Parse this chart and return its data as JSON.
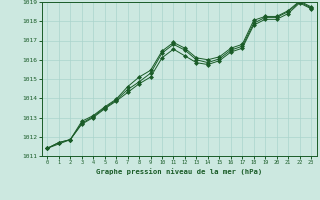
{
  "xlabel": "Graphe pression niveau de la mer (hPa)",
  "xlim": [
    -0.5,
    23.5
  ],
  "ylim": [
    1011,
    1019
  ],
  "yticks": [
    1011,
    1012,
    1013,
    1014,
    1015,
    1016,
    1017,
    1018,
    1019
  ],
  "xticks": [
    0,
    1,
    2,
    3,
    4,
    5,
    6,
    7,
    8,
    9,
    10,
    11,
    12,
    13,
    14,
    15,
    16,
    17,
    18,
    19,
    20,
    21,
    22,
    23
  ],
  "bg_color": "#cce8e0",
  "grid_color": "#aad4cc",
  "line_color": "#1a5c28",
  "line1_x": [
    0,
    1,
    2,
    3,
    4,
    5,
    6,
    7,
    8,
    9,
    10,
    11,
    12,
    13,
    14,
    15,
    16,
    17,
    18,
    19,
    20,
    21,
    22,
    23
  ],
  "line1_y": [
    1011.4,
    1011.7,
    1011.85,
    1012.65,
    1013.0,
    1013.45,
    1013.85,
    1014.3,
    1014.75,
    1015.1,
    1016.1,
    1016.55,
    1016.2,
    1015.85,
    1015.75,
    1015.95,
    1016.4,
    1016.6,
    1017.8,
    1018.1,
    1018.1,
    1018.4,
    1018.95,
    1018.65
  ],
  "line2_x": [
    0,
    1,
    2,
    3,
    4,
    5,
    6,
    7,
    8,
    9,
    10,
    11,
    12,
    13,
    14,
    15,
    16,
    17,
    18,
    19,
    20,
    21,
    22,
    23
  ],
  "line2_y": [
    1011.4,
    1011.7,
    1011.85,
    1012.8,
    1013.1,
    1013.55,
    1013.95,
    1014.6,
    1015.1,
    1015.45,
    1016.45,
    1016.9,
    1016.6,
    1016.1,
    1016.0,
    1016.15,
    1016.6,
    1016.8,
    1018.05,
    1018.25,
    1018.25,
    1018.55,
    1019.05,
    1018.75
  ],
  "line3_x": [
    0,
    2,
    3,
    4,
    5,
    6,
    7,
    8,
    9,
    10,
    11,
    12,
    13,
    14,
    15,
    16,
    17,
    18,
    19,
    20,
    21,
    22,
    23
  ],
  "line3_y": [
    1011.4,
    1011.85,
    1012.7,
    1013.05,
    1013.5,
    1013.9,
    1014.45,
    1014.85,
    1015.3,
    1016.35,
    1016.8,
    1016.5,
    1016.0,
    1015.85,
    1016.05,
    1016.5,
    1016.7,
    1017.9,
    1018.2,
    1018.2,
    1018.5,
    1019.0,
    1018.7
  ]
}
